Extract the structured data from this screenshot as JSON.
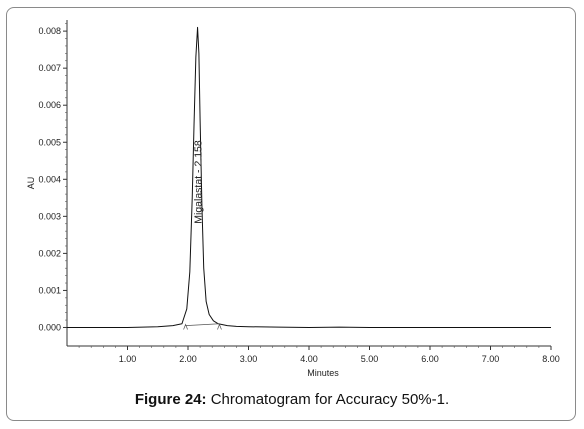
{
  "caption": {
    "label": "Figure 24:",
    "text": "Chromatogram for Accuracy 50%-1."
  },
  "chart_data": {
    "type": "line",
    "xlabel": "Minutes",
    "ylabel": "AU",
    "xlim": [
      0,
      8.0
    ],
    "ylim": [
      -0.0005,
      0.0083
    ],
    "x_ticks": [
      "1.00",
      "2.00",
      "3.00",
      "4.00",
      "5.00",
      "6.00",
      "7.00",
      "8.00"
    ],
    "x_tick_values": [
      1,
      2,
      3,
      4,
      5,
      6,
      7,
      8
    ],
    "y_ticks": [
      "0.000",
      "0.001",
      "0.002",
      "0.003",
      "0.004",
      "0.005",
      "0.006",
      "0.007",
      "0.008"
    ],
    "y_tick_values": [
      0,
      0.001,
      0.002,
      0.003,
      0.004,
      0.005,
      0.006,
      0.007,
      0.008
    ],
    "grid": false,
    "series": [
      {
        "x": [
          0,
          0.5,
          1.0,
          1.5,
          1.75,
          1.9,
          1.98,
          2.03,
          2.07,
          2.1,
          2.13,
          2.158,
          2.18,
          2.2,
          2.23,
          2.26,
          2.3,
          2.35,
          2.42,
          2.5,
          2.65,
          2.8,
          3.0,
          3.5,
          4.0,
          4.5,
          5.0,
          5.5,
          6.0,
          6.5,
          7.0,
          7.5,
          8.0
        ],
        "y": [
          0.0,
          0.0,
          0.0,
          2e-05,
          5e-05,
          0.0001,
          0.0005,
          0.0015,
          0.0035,
          0.0055,
          0.0073,
          0.0081,
          0.0074,
          0.0056,
          0.0033,
          0.0016,
          0.0007,
          0.00035,
          0.00018,
          0.0001,
          5e-05,
          3e-05,
          2e-05,
          1e-05,
          0.0,
          1e-05,
          0.0,
          0.0,
          0.0,
          0.0,
          0.0,
          0.0,
          0.0
        ]
      }
    ],
    "annotations": [
      {
        "text": "Migalastat - 2.158",
        "x": 2.158
      }
    ]
  }
}
